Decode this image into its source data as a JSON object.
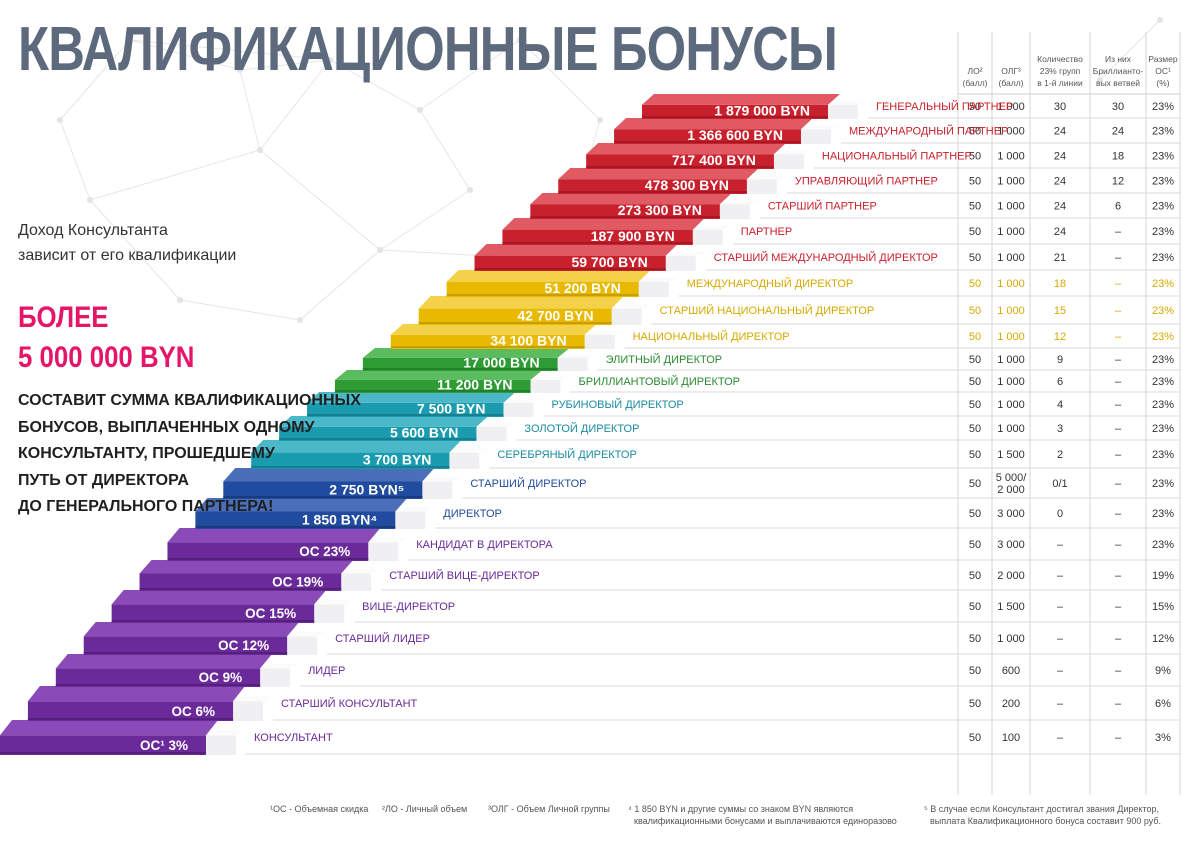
{
  "title": "КВАЛИФИКАЦИОННЫЕ БОНУСЫ",
  "intro": [
    "Доход Консультанта",
    "зависит от его квалификации"
  ],
  "highlight": [
    "БОЛЕЕ",
    "5 000 000 BYN"
  ],
  "description": [
    "СОСТАВИТ СУММА КВАЛИФИКАЦИОННЫХ",
    "БОНУСОВ, ВЫПЛАЧЕННЫХ ОДНОМУ",
    "КОНСУЛЬТАНТУ, ПРОШЕДШЕМУ",
    "ПУТЬ ОТ ДИРЕКТОРА",
    "ДО ГЕНЕРАЛЬНОГО ПАРТНЕРА!"
  ],
  "table_headers": [
    [
      "ЛО²",
      "(балл)"
    ],
    [
      "ОЛГ³",
      "(балл)"
    ],
    [
      "Количество",
      "23% групп",
      "в 1-й линии"
    ],
    [
      "Из них",
      "Бриллианто-",
      "вых ветвей"
    ],
    [
      "Размер",
      "ОС¹",
      "(%)"
    ]
  ],
  "colors": {
    "red": "#c8202c",
    "yellow": "#e8b900",
    "green": "#2e9b35",
    "teal": "#1a9bb0",
    "blue": "#214b9e",
    "purple": "#6a2a99"
  },
  "ranks": [
    {
      "step": "1 879 000 BYN",
      "name": "ГЕНЕРАЛЬНЫЙ ПАРТНЕР",
      "lo": "50",
      "olg": "1 000",
      "groups": "30",
      "diamond": "30",
      "os": "23%",
      "color": "red"
    },
    {
      "step": "1 366 600 BYN",
      "name": "МЕЖДУНАРОДНЫЙ ПАРТНЕР",
      "lo": "50",
      "olg": "1 000",
      "groups": "24",
      "diamond": "24",
      "os": "23%",
      "color": "red"
    },
    {
      "step": "717 400 BYN",
      "name": "НАЦИОНАЛЬНЫЙ ПАРТНЕР",
      "lo": "50",
      "olg": "1 000",
      "groups": "24",
      "diamond": "18",
      "os": "23%",
      "color": "red"
    },
    {
      "step": "478 300 BYN",
      "name": "УПРАВЛЯЮЩИЙ ПАРТНЕР",
      "lo": "50",
      "olg": "1 000",
      "groups": "24",
      "diamond": "12",
      "os": "23%",
      "color": "red"
    },
    {
      "step": "273 300 BYN",
      "name": "СТАРШИЙ ПАРТНЕР",
      "lo": "50",
      "olg": "1 000",
      "groups": "24",
      "diamond": "6",
      "os": "23%",
      "color": "red"
    },
    {
      "step": "187 900 BYN",
      "name": "ПАРТНЕР",
      "lo": "50",
      "olg": "1 000",
      "groups": "24",
      "diamond": "–",
      "os": "23%",
      "color": "red"
    },
    {
      "step": "59 700 BYN",
      "name": "СТАРШИЙ МЕЖДУНАРОДНЫЙ ДИРЕКТОР",
      "lo": "50",
      "olg": "1 000",
      "groups": "21",
      "diamond": "–",
      "os": "23%",
      "color": "red"
    },
    {
      "step": "51 200 BYN",
      "name": "МЕЖДУНАРОДНЫЙ ДИРЕКТОР",
      "lo": "50",
      "olg": "1 000",
      "groups": "18",
      "diamond": "–",
      "os": "23%",
      "color": "yellow"
    },
    {
      "step": "42 700 BYN",
      "name": "СТАРШИЙ НАЦИОНАЛЬНЫЙ ДИРЕКТОР",
      "lo": "50",
      "olg": "1 000",
      "groups": "15",
      "diamond": "–",
      "os": "23%",
      "color": "yellow"
    },
    {
      "step": "34 100 BYN",
      "name": "НАЦИОНАЛЬНЫЙ ДИРЕКТОР",
      "lo": "50",
      "olg": "1 000",
      "groups": "12",
      "diamond": "–",
      "os": "23%",
      "color": "yellow"
    },
    {
      "step": "17 000 BYN",
      "name": "ЭЛИТНЫЙ ДИРЕКТОР",
      "lo": "50",
      "olg": "1 000",
      "groups": "9",
      "diamond": "–",
      "os": "23%",
      "color": "green"
    },
    {
      "step": "11 200 BYN",
      "name": "БРИЛЛИАНТОВЫЙ ДИРЕКТОР",
      "lo": "50",
      "olg": "1 000",
      "groups": "6",
      "diamond": "–",
      "os": "23%",
      "color": "green"
    },
    {
      "step": "7 500 BYN",
      "name": "РУБИНОВЫЙ ДИРЕКТОР",
      "lo": "50",
      "olg": "1 000",
      "groups": "4",
      "diamond": "–",
      "os": "23%",
      "color": "teal"
    },
    {
      "step": "5 600 BYN",
      "name": "ЗОЛОТОЙ ДИРЕКТОР",
      "lo": "50",
      "olg": "1 000",
      "groups": "3",
      "diamond": "–",
      "os": "23%",
      "color": "teal"
    },
    {
      "step": "3 700 BYN",
      "name": "СЕРЕБРЯНЫЙ ДИРЕКТОР",
      "lo": "50",
      "olg": "1 500",
      "groups": "2",
      "diamond": "–",
      "os": "23%",
      "color": "teal"
    },
    {
      "step": "2 750 BYN⁵",
      "name": "СТАРШИЙ ДИРЕКТОР",
      "lo": "50",
      "olg": "5 000/ 2 000",
      "groups": "0/1",
      "diamond": "–",
      "os": "23%",
      "color": "blue"
    },
    {
      "step": "1 850 BYN⁴",
      "name": "ДИРЕКТОР",
      "lo": "50",
      "olg": "3 000",
      "groups": "0",
      "diamond": "–",
      "os": "23%",
      "color": "blue"
    },
    {
      "step": "ОС 23%",
      "name": "КАНДИДАТ В ДИРЕКТОРА",
      "lo": "50",
      "olg": "3 000",
      "groups": "–",
      "diamond": "–",
      "os": "23%",
      "color": "purple"
    },
    {
      "step": "ОС 19%",
      "name": "СТАРШИЙ ВИЦЕ-ДИРЕКТОР",
      "lo": "50",
      "olg": "2 000",
      "groups": "–",
      "diamond": "–",
      "os": "19%",
      "color": "purple"
    },
    {
      "step": "ОС 15%",
      "name": "ВИЦЕ-ДИРЕКТОР",
      "lo": "50",
      "olg": "1 500",
      "groups": "–",
      "diamond": "–",
      "os": "15%",
      "color": "purple"
    },
    {
      "step": "ОС 12%",
      "name": "СТАРШИЙ ЛИДЕР",
      "lo": "50",
      "olg": "1 000",
      "groups": "–",
      "diamond": "–",
      "os": "12%",
      "color": "purple"
    },
    {
      "step": "ОС 9%",
      "name": "ЛИДЕР",
      "lo": "50",
      "olg": "600",
      "groups": "–",
      "diamond": "–",
      "os": "9%",
      "color": "purple"
    },
    {
      "step": "ОС 6%",
      "name": "СТАРШИЙ КОНСУЛЬТАНТ",
      "lo": "50",
      "olg": "200",
      "groups": "–",
      "diamond": "–",
      "os": "6%",
      "color": "purple"
    },
    {
      "step": "ОС¹ 3%",
      "name": "КОНСУЛЬТАНТ",
      "lo": "50",
      "olg": "100",
      "groups": "–",
      "diamond": "–",
      "os": "3%",
      "color": "purple"
    }
  ],
  "footnotes": {
    "os": "¹ОС - Объемная скидка",
    "lo": "²ЛО - Личный объем",
    "olg": "³ОЛГ - Объем Личной группы",
    "byn": [
      "⁴ 1 850 BYN и другие суммы со знаком BYN являются",
      "квалификационными бонусами и выплачиваются единоразово"
    ],
    "director": [
      "⁵ В случае если Консультант достигал звания Директор,",
      "выплата Квалификационного бонуса составит 900 руб."
    ]
  }
}
